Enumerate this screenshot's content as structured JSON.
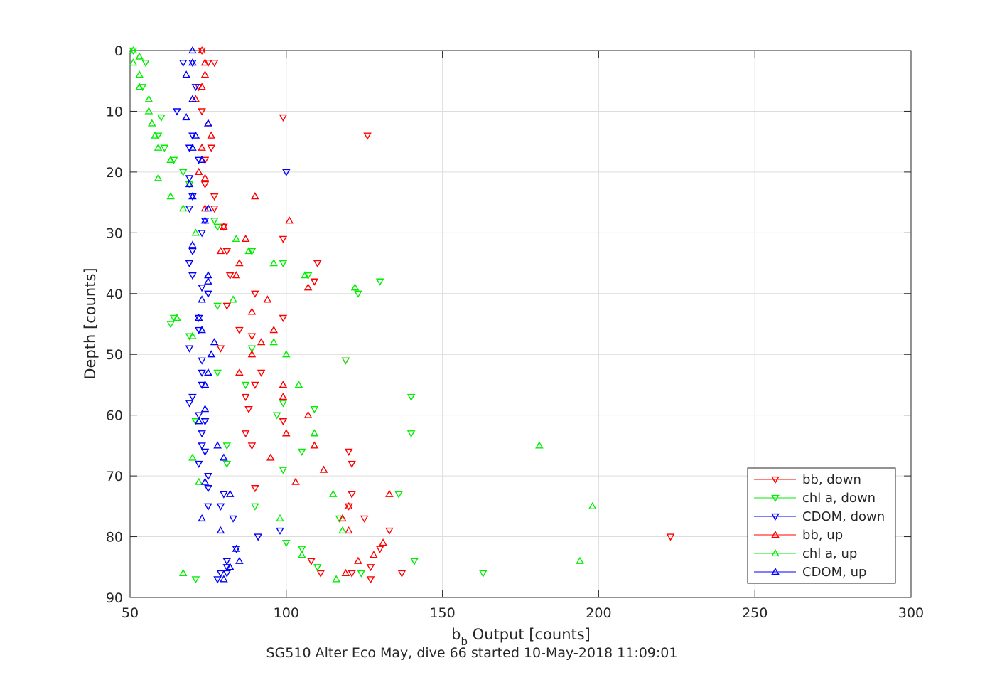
{
  "chart_data": {
    "type": "scatter",
    "xlabel_main": "b",
    "xlabel_sub": "b",
    "xlabel_rest": " Output [counts]",
    "ylabel": "Depth [counts]",
    "caption": "SG510 Alter Eco May, dive 66 started 10-May-2018 11:09:01",
    "xlim": [
      50,
      300
    ],
    "ylim": [
      0,
      90
    ],
    "y_reversed": true,
    "grid": true,
    "legend_position": "bottom-right",
    "xticks": [
      "50",
      "100",
      "150",
      "200",
      "250",
      "300"
    ],
    "yticks": [
      "0",
      "10",
      "20",
      "30",
      "40",
      "50",
      "60",
      "70",
      "80",
      "90"
    ],
    "series": [
      {
        "name": "bb, down",
        "color": "#ff0000",
        "marker": "triangle-down",
        "points": [
          [
            73,
            0
          ],
          [
            75,
            2
          ],
          [
            77,
            2
          ],
          [
            72,
            6
          ],
          [
            73,
            10
          ],
          [
            99,
            11
          ],
          [
            126,
            14
          ],
          [
            76,
            16
          ],
          [
            74,
            18
          ],
          [
            74,
            22
          ],
          [
            77,
            24
          ],
          [
            77,
            26
          ],
          [
            80,
            29
          ],
          [
            99,
            31
          ],
          [
            81,
            33
          ],
          [
            110,
            35
          ],
          [
            82,
            37
          ],
          [
            109,
            38
          ],
          [
            90,
            40
          ],
          [
            81,
            42
          ],
          [
            99,
            44
          ],
          [
            85,
            46
          ],
          [
            89,
            47
          ],
          [
            79,
            49
          ],
          [
            119,
            51
          ],
          [
            92,
            53
          ],
          [
            90,
            55
          ],
          [
            87,
            57
          ],
          [
            88,
            59
          ],
          [
            99,
            61
          ],
          [
            87,
            63
          ],
          [
            89,
            65
          ],
          [
            120,
            66
          ],
          [
            121,
            68
          ],
          [
            90,
            72
          ],
          [
            121,
            73
          ],
          [
            120,
            75
          ],
          [
            125,
            77
          ],
          [
            130,
            82
          ],
          [
            223,
            80
          ],
          [
            133,
            79
          ],
          [
            108,
            84
          ],
          [
            127,
            85
          ],
          [
            137,
            86
          ],
          [
            111,
            86
          ],
          [
            127,
            87
          ],
          [
            121,
            86
          ]
        ]
      },
      {
        "name": "chl a, down",
        "color": "#00ee00",
        "marker": "triangle-down",
        "points": [
          [
            51,
            0
          ],
          [
            55,
            2
          ],
          [
            54,
            6
          ],
          [
            60,
            11
          ],
          [
            59,
            14
          ],
          [
            61,
            16
          ],
          [
            64,
            18
          ],
          [
            67,
            20
          ],
          [
            69,
            22
          ],
          [
            77,
            28
          ],
          [
            78,
            29
          ],
          [
            89,
            33
          ],
          [
            99,
            35
          ],
          [
            107,
            37
          ],
          [
            130,
            38
          ],
          [
            123,
            40
          ],
          [
            78,
            42
          ],
          [
            64,
            44
          ],
          [
            63,
            45
          ],
          [
            69,
            47
          ],
          [
            89,
            49
          ],
          [
            119,
            51
          ],
          [
            78,
            53
          ],
          [
            87,
            55
          ],
          [
            140,
            57
          ],
          [
            99,
            58
          ],
          [
            97,
            60
          ],
          [
            109,
            59
          ],
          [
            71,
            61
          ],
          [
            140,
            63
          ],
          [
            81,
            65
          ],
          [
            105,
            66
          ],
          [
            81,
            68
          ],
          [
            99,
            69
          ],
          [
            136,
            73
          ],
          [
            90,
            75
          ],
          [
            117,
            77
          ],
          [
            124,
            86
          ],
          [
            105,
            82
          ],
          [
            100,
            81
          ],
          [
            141,
            84
          ],
          [
            163,
            86
          ],
          [
            110,
            85
          ],
          [
            71,
            87
          ]
        ]
      },
      {
        "name": "CDOM, down",
        "color": "#0000ff",
        "marker": "triangle-down",
        "points": [
          [
            70,
            2
          ],
          [
            67,
            2
          ],
          [
            71,
            6
          ],
          [
            65,
            10
          ],
          [
            70,
            14
          ],
          [
            69,
            16
          ],
          [
            72,
            18
          ],
          [
            100,
            20
          ],
          [
            69,
            21
          ],
          [
            70,
            24
          ],
          [
            69,
            26
          ],
          [
            74,
            28
          ],
          [
            73,
            30
          ],
          [
            70,
            33
          ],
          [
            69,
            35
          ],
          [
            70,
            37
          ],
          [
            73,
            39
          ],
          [
            75,
            40
          ],
          [
            72,
            44
          ],
          [
            72,
            46
          ],
          [
            69,
            49
          ],
          [
            73,
            51
          ],
          [
            73,
            53
          ],
          [
            73,
            55
          ],
          [
            70,
            57
          ],
          [
            69,
            58
          ],
          [
            72,
            60
          ],
          [
            74,
            61
          ],
          [
            73,
            63
          ],
          [
            73,
            65
          ],
          [
            74,
            66
          ],
          [
            72,
            68
          ],
          [
            75,
            70
          ],
          [
            75,
            72
          ],
          [
            80,
            73
          ],
          [
            79,
            75
          ],
          [
            75,
            75
          ],
          [
            83,
            77
          ],
          [
            91,
            80
          ],
          [
            98,
            79
          ],
          [
            84,
            82
          ],
          [
            81,
            84
          ],
          [
            81,
            85
          ],
          [
            81,
            86
          ],
          [
            79,
            86
          ],
          [
            78,
            87
          ]
        ]
      },
      {
        "name": "bb, up",
        "color": "#ff0000",
        "marker": "triangle-up",
        "points": [
          [
            73,
            0
          ],
          [
            74,
            2
          ],
          [
            74,
            4
          ],
          [
            73,
            6
          ],
          [
            71,
            8
          ],
          [
            75,
            12
          ],
          [
            76,
            14
          ],
          [
            73,
            16
          ],
          [
            73,
            18
          ],
          [
            72,
            20
          ],
          [
            74,
            21
          ],
          [
            90,
            24
          ],
          [
            74,
            26
          ],
          [
            101,
            28
          ],
          [
            80,
            29
          ],
          [
            87,
            31
          ],
          [
            79,
            33
          ],
          [
            85,
            35
          ],
          [
            84,
            37
          ],
          [
            107,
            39
          ],
          [
            94,
            41
          ],
          [
            89,
            43
          ],
          [
            96,
            46
          ],
          [
            92,
            48
          ],
          [
            89,
            50
          ],
          [
            85,
            53
          ],
          [
            99,
            55
          ],
          [
            99,
            57
          ],
          [
            107,
            60
          ],
          [
            100,
            63
          ],
          [
            109,
            65
          ],
          [
            95,
            67
          ],
          [
            112,
            69
          ],
          [
            103,
            71
          ],
          [
            133,
            73
          ],
          [
            120,
            75
          ],
          [
            118,
            77
          ],
          [
            120,
            79
          ],
          [
            131,
            81
          ],
          [
            128,
            83
          ],
          [
            123,
            84
          ],
          [
            119,
            86
          ]
        ]
      },
      {
        "name": "chl a, up",
        "color": "#00ee00",
        "marker": "triangle-up",
        "points": [
          [
            51,
            0
          ],
          [
            53,
            1
          ],
          [
            51,
            2
          ],
          [
            53,
            4
          ],
          [
            53,
            6
          ],
          [
            56,
            8
          ],
          [
            56,
            10
          ],
          [
            57,
            12
          ],
          [
            58,
            14
          ],
          [
            59,
            16
          ],
          [
            63,
            18
          ],
          [
            59,
            21
          ],
          [
            63,
            24
          ],
          [
            67,
            26
          ],
          [
            71,
            30
          ],
          [
            84,
            31
          ],
          [
            88,
            33
          ],
          [
            96,
            35
          ],
          [
            106,
            37
          ],
          [
            122,
            39
          ],
          [
            83,
            41
          ],
          [
            65,
            44
          ],
          [
            70,
            47
          ],
          [
            96,
            48
          ],
          [
            100,
            50
          ],
          [
            104,
            55
          ],
          [
            109,
            63
          ],
          [
            72,
            71
          ],
          [
            70,
            67
          ],
          [
            115,
            73
          ],
          [
            198,
            75
          ],
          [
            98,
            77
          ],
          [
            118,
            79
          ],
          [
            181,
            65
          ],
          [
            105,
            83
          ],
          [
            194,
            84
          ],
          [
            67,
            86
          ],
          [
            116,
            87
          ]
        ]
      },
      {
        "name": "CDOM, up",
        "color": "#0000ff",
        "marker": "triangle-up",
        "points": [
          [
            70,
            0
          ],
          [
            70,
            2
          ],
          [
            68,
            4
          ],
          [
            70,
            8
          ],
          [
            68,
            11
          ],
          [
            75,
            12
          ],
          [
            71,
            14
          ],
          [
            70,
            16
          ],
          [
            73,
            18
          ],
          [
            69,
            22
          ],
          [
            70,
            24
          ],
          [
            75,
            26
          ],
          [
            74,
            28
          ],
          [
            70,
            32
          ],
          [
            75,
            37
          ],
          [
            75,
            38
          ],
          [
            73,
            41
          ],
          [
            72,
            44
          ],
          [
            73,
            46
          ],
          [
            77,
            48
          ],
          [
            76,
            50
          ],
          [
            75,
            53
          ],
          [
            74,
            55
          ],
          [
            74,
            59
          ],
          [
            72,
            61
          ],
          [
            78,
            65
          ],
          [
            80,
            67
          ],
          [
            74,
            71
          ],
          [
            82,
            73
          ],
          [
            84,
            82
          ],
          [
            85,
            84
          ],
          [
            82,
            85
          ],
          [
            80,
            87
          ],
          [
            79,
            79
          ],
          [
            73,
            77
          ]
        ]
      }
    ]
  }
}
